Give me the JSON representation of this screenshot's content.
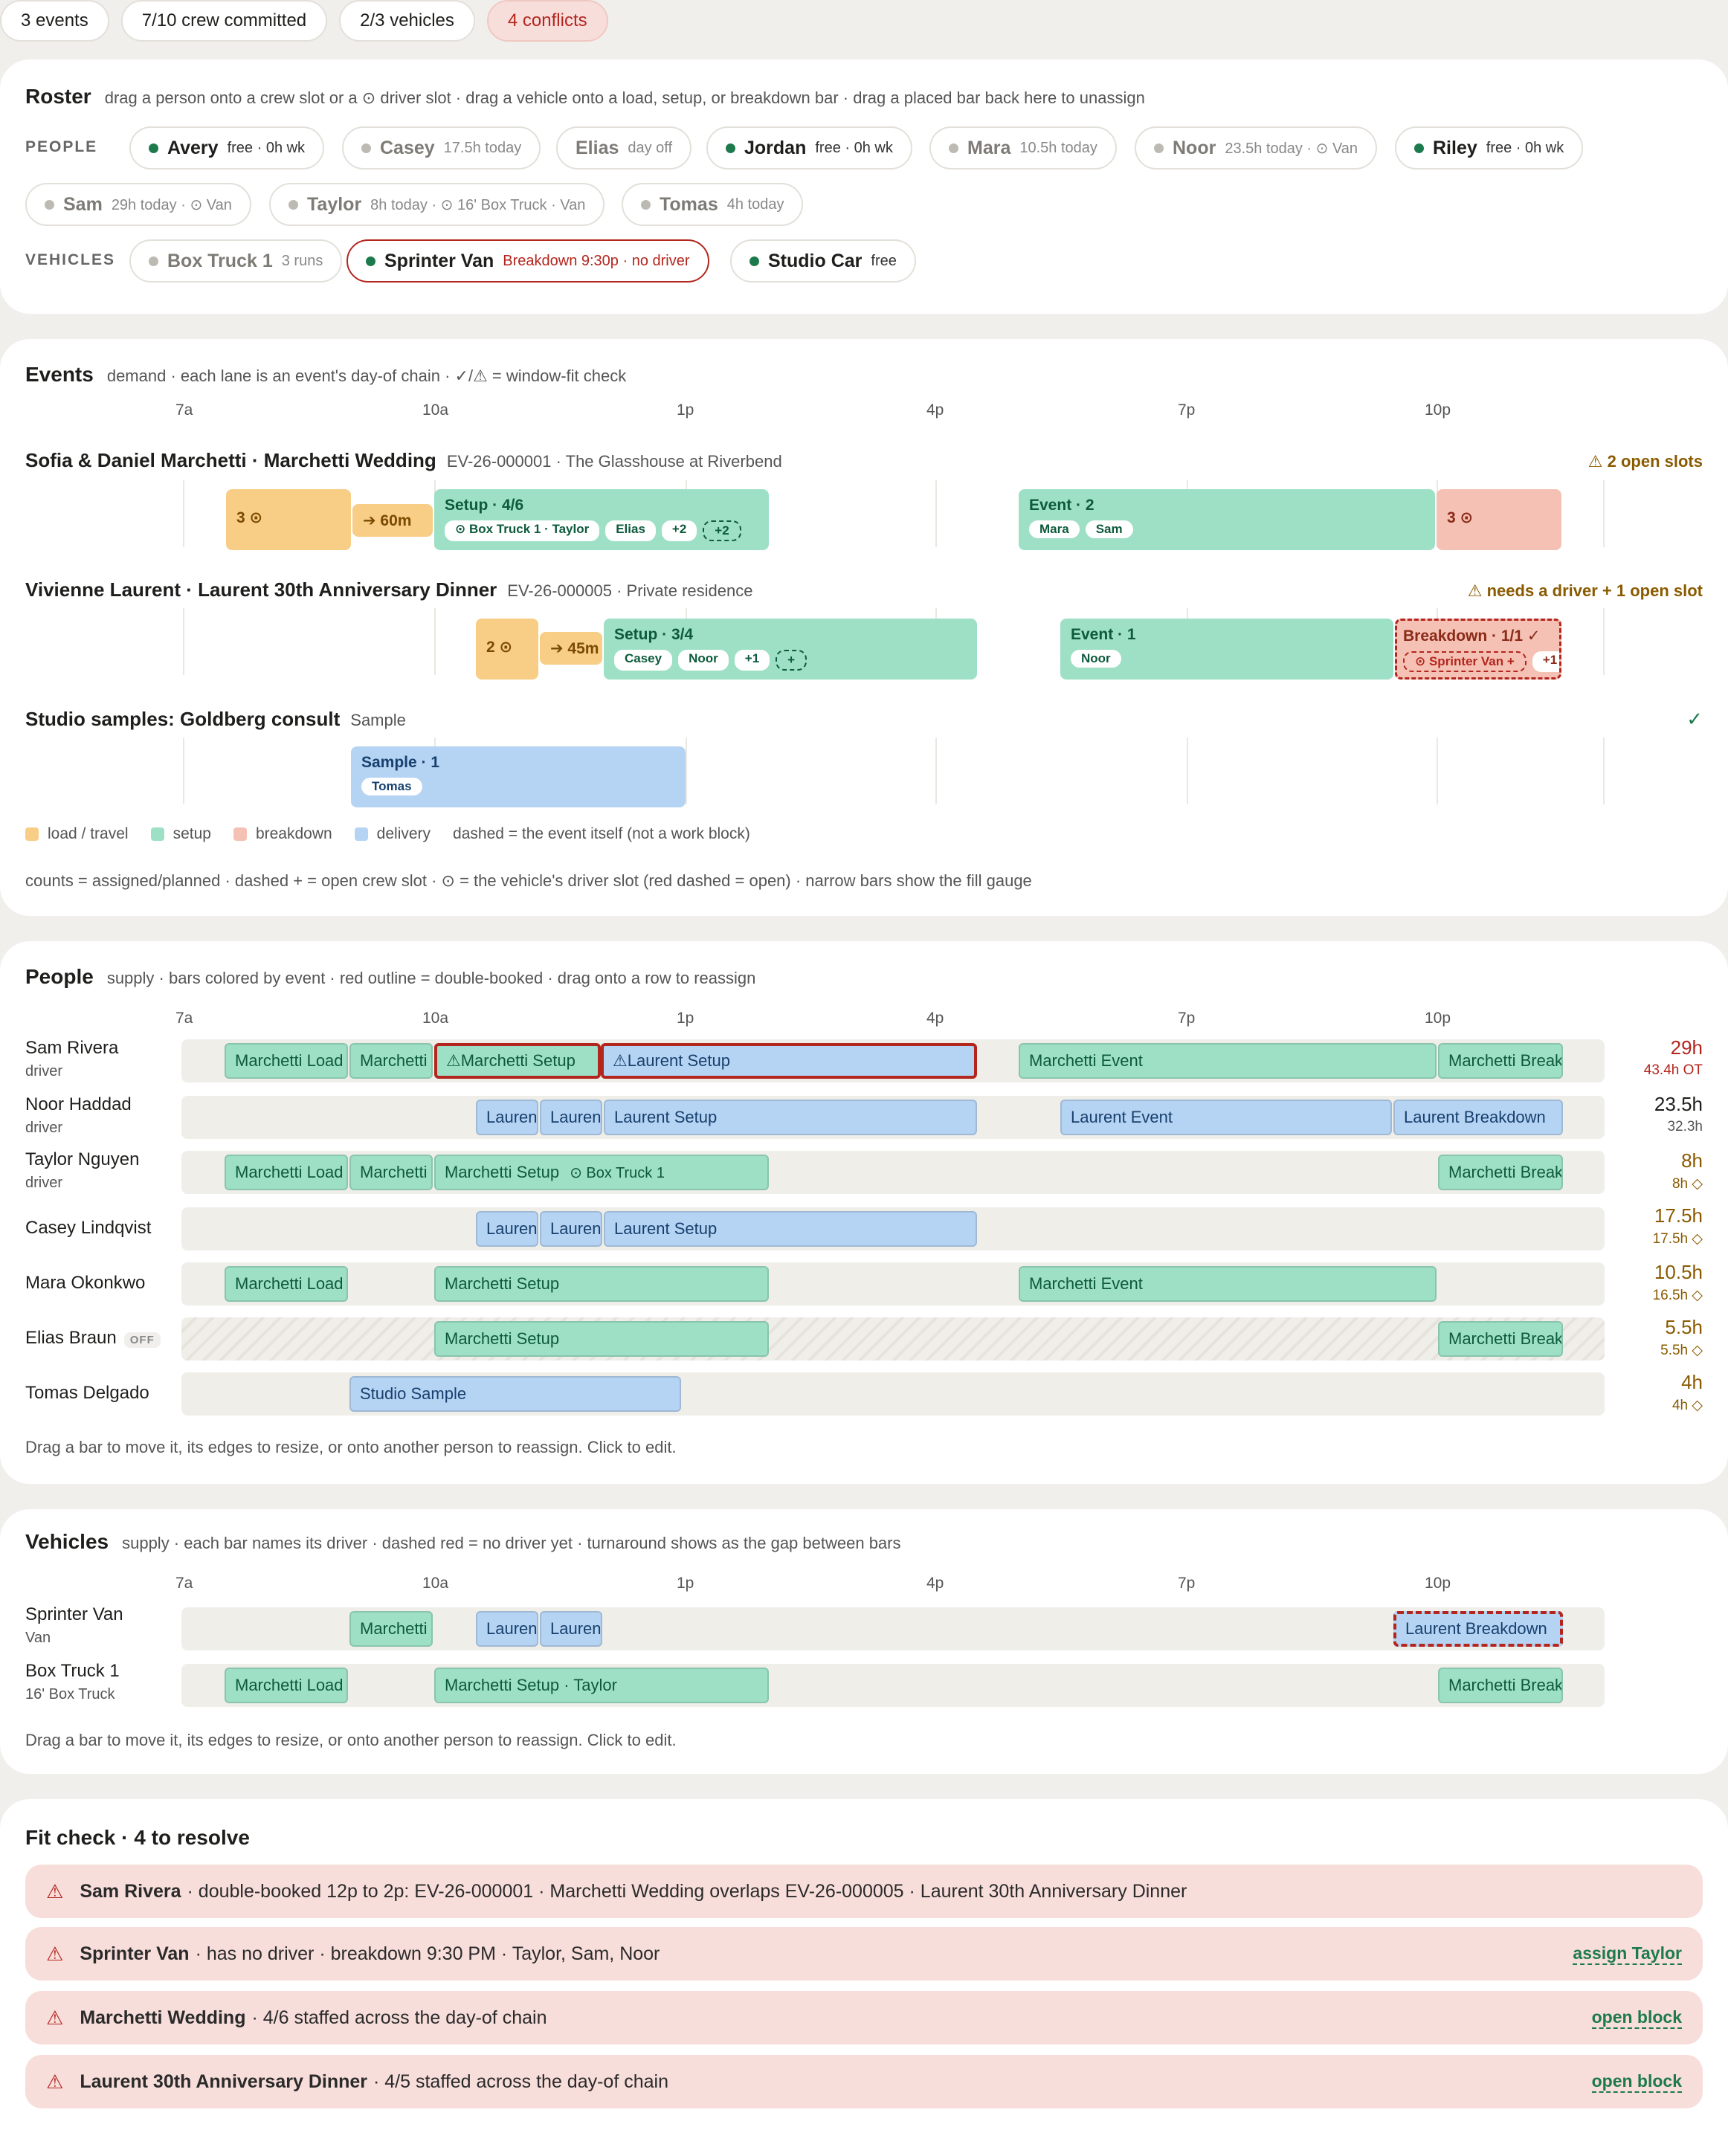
{
  "topbar": {
    "events": "3 events",
    "crew": "7/10 crew committed",
    "vehicles": "2/3 vehicles",
    "conflicts": "4 conflicts"
  },
  "roster": {
    "title": "Roster",
    "subtitle": "drag a person onto a crew slot or a ⊙ driver slot · drag a vehicle onto a load, setup, or breakdown bar · drag a placed bar back here to unassign",
    "people_label": "PEOPLE",
    "vehicles_label": "VEHICLES",
    "people": [
      {
        "name": "Avery",
        "status": "free · 0h wk"
      },
      {
        "name": "Casey",
        "status": "17.5h today"
      },
      {
        "name": "Elias",
        "status": "day off"
      },
      {
        "name": "Jordan",
        "status": "free · 0h wk"
      },
      {
        "name": "Mara",
        "status": "10.5h today"
      },
      {
        "name": "Noor",
        "status": "23.5h today · ⊙ Van"
      },
      {
        "name": "Riley",
        "status": "free · 0h wk"
      },
      {
        "name": "Sam",
        "status": "29h today · ⊙ Van"
      },
      {
        "name": "Taylor",
        "status": "8h today · ⊙ 16' Box Truck · Van"
      },
      {
        "name": "Tomas",
        "status": "4h today"
      }
    ],
    "vehicles": [
      {
        "name": "Box Truck 1",
        "status": "3 runs"
      },
      {
        "name": "Sprinter Van",
        "status": "Breakdown 9:30p · no driver"
      },
      {
        "name": "Studio Car",
        "status": "free"
      }
    ]
  },
  "axis": [
    "7a",
    "10a",
    "1p",
    "4p",
    "7p",
    "10p"
  ],
  "events": {
    "title": "Events",
    "subtitle": "demand · each lane is an event's day-of chain · ✓/⚠ = window-fit check",
    "lanes": [
      {
        "title": "Sofia & Daniel Marchetti · Marchetti Wedding",
        "meta": "EV-26-000001 · The Glasshouse at Riverbend",
        "note": "⚠ 2 open slots",
        "load": "3 ⊙",
        "travel": "➔ 60m",
        "setup": "Setup · 4/6",
        "setup_tags": [
          "⊙ Box Truck 1 · Taylor",
          "Elias",
          "+2",
          "+2"
        ],
        "event": "Event · 2",
        "event_tags": [
          "Mara",
          "Sam"
        ],
        "break": "3 ⊙"
      },
      {
        "title": "Vivienne Laurent · Laurent 30th Anniversary Dinner",
        "meta": "EV-26-000005 · Private residence",
        "note": "⚠ needs a driver + 1 open slot",
        "load": "2 ⊙",
        "travel": "➔ 45m",
        "setup": "Setup · 3/4",
        "setup_tags": [
          "Casey",
          "Noor",
          "+1",
          "+"
        ],
        "event": "Event · 1",
        "event_tags": [
          "Noor"
        ],
        "break": "Breakdown · 1/1 ✓",
        "break_tags": [
          "⊙ Sprinter Van +",
          "+1"
        ]
      },
      {
        "title": "Studio samples: Goldberg consult",
        "meta": "Sample",
        "note": "✓",
        "sample": "Sample · 1",
        "sample_tags": [
          "Tomas"
        ]
      }
    ],
    "legend": [
      "load / travel",
      "setup",
      "breakdown",
      "delivery",
      "dashed = the event itself (not a work block)"
    ],
    "counts_note": "counts = assigned/planned · dashed + = open crew slot · ⊙ = the vehicle's driver slot (red dashed = open) · narrow bars show the fill gauge"
  },
  "people": {
    "title": "People",
    "subtitle": "supply · bars colored by event · red outline = double-booked · drag onto a row to reassign",
    "rows": [
      {
        "name": "Sam Rivera",
        "role": "driver",
        "hours": "29h",
        "sub": "43.4h OT"
      },
      {
        "name": "Noor Haddad",
        "role": "driver",
        "hours": "23.5h",
        "sub": "32.3h"
      },
      {
        "name": "Taylor Nguyen",
        "role": "driver",
        "hours": "8h",
        "sub": "8h ◇"
      },
      {
        "name": "Casey Lindqvist",
        "role": "",
        "hours": "17.5h",
        "sub": "17.5h ◇"
      },
      {
        "name": "Mara Okonkwo",
        "role": "",
        "hours": "10.5h",
        "sub": "16.5h ◇"
      },
      {
        "name": "Elias Braun",
        "role": "",
        "off": "OFF",
        "hours": "5.5h",
        "sub": "5.5h ◇"
      },
      {
        "name": "Tomas Delgado",
        "role": "",
        "hours": "4h",
        "sub": "4h ◇"
      }
    ],
    "bars": {
      "marchetti_load": "Marchetti Load",
      "marchetti": "Marchetti",
      "warn_marchetti_setup": "⚠Marchetti Setup",
      "warn_laurent_setup": "⚠Laurent Setup",
      "marchetti_event": "Marchetti Event",
      "marchetti_break": "Marchetti Break",
      "laurent": "Laurent",
      "laurent_setup": "Laurent Setup",
      "laurent_event": "Laurent Event",
      "laurent_breakdown": "Laurent Breakdown",
      "marchetti_setup": "Marchetti Setup",
      "box_truck": "⊙ Box Truck 1",
      "studio_sample": "Studio Sample"
    },
    "hint": "Drag a bar to move it, its edges to resize, or onto another person to reassign. Click to edit."
  },
  "vehicles": {
    "title": "Vehicles",
    "subtitle": "supply · each bar names its driver · dashed red = no driver yet · turnaround shows as the gap between bars",
    "rows": [
      {
        "name": "Sprinter Van",
        "type": "Van"
      },
      {
        "name": "Box Truck 1",
        "type": "16' Box Truck"
      }
    ],
    "bars": {
      "marchetti": "Marchetti",
      "laurent": "Laurent",
      "laurent_breakdown": "Laurent Breakdown",
      "marchetti_load": "Marchetti Load",
      "marchetti_setup_taylor": "Marchetti Setup  · Taylor",
      "marchetti_break": "Marchetti Break"
    },
    "hint": "Drag a bar to move it, its edges to resize, or onto another person to reassign. Click to edit."
  },
  "fitcheck": {
    "title": "Fit check · 4 to resolve",
    "items": [
      {
        "subject": "Sam Rivera",
        "text": "· double-booked 12p to 2p: EV-26-000001 · Marchetti Wedding overlaps EV-26-000005 · Laurent 30th Anniversary Dinner",
        "action": ""
      },
      {
        "subject": "Sprinter Van",
        "text": "· has no driver · breakdown 9:30 PM · Taylor, Sam, Noor",
        "action": "assign Taylor"
      },
      {
        "subject": "Marchetti Wedding",
        "text": "· 4/6 staffed across the day-of chain",
        "action": "open block"
      },
      {
        "subject": "Laurent 30th Anniversary Dinner",
        "text": "· 4/5 staffed across the day-of chain",
        "action": "open block"
      }
    ]
  }
}
